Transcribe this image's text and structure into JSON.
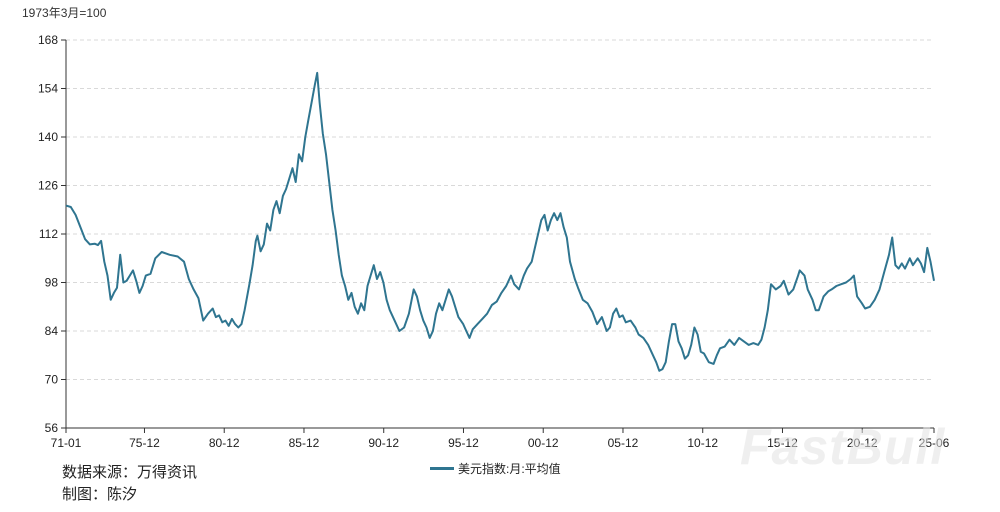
{
  "chart_data": {
    "type": "line",
    "unit_label": "1973年3月=100",
    "ylim": [
      56,
      168
    ],
    "yticks": [
      56,
      70,
      84,
      98,
      112,
      126,
      140,
      154,
      168
    ],
    "xlim": [
      1971.0,
      2025.42
    ],
    "xticks": [
      {
        "label": "71-01",
        "x": 1971.0
      },
      {
        "label": "75-12",
        "x": 1975.92
      },
      {
        "label": "80-12",
        "x": 1980.92
      },
      {
        "label": "85-12",
        "x": 1985.92
      },
      {
        "label": "90-12",
        "x": 1990.92
      },
      {
        "label": "95-12",
        "x": 1995.92
      },
      {
        "label": "00-12",
        "x": 2000.92
      },
      {
        "label": "05-12",
        "x": 2005.92
      },
      {
        "label": "10-12",
        "x": 2010.92
      },
      {
        "label": "15-12",
        "x": 2015.92
      },
      {
        "label": "20-12",
        "x": 2020.92
      },
      {
        "label": "25-06",
        "x": 2025.42
      }
    ],
    "grid": true,
    "legend_position": "bottom-center",
    "series": [
      {
        "name": "美元指数:月:平均值",
        "color": "#2f7590",
        "points": [
          [
            1971.0,
            120.2
          ],
          [
            1971.3,
            119.8
          ],
          [
            1971.6,
            117.5
          ],
          [
            1971.9,
            114.0
          ],
          [
            1972.2,
            110.5
          ],
          [
            1972.5,
            109.0
          ],
          [
            1972.8,
            109.2
          ],
          [
            1973.0,
            108.8
          ],
          [
            1973.2,
            110.0
          ],
          [
            1973.4,
            104.0
          ],
          [
            1973.6,
            100.0
          ],
          [
            1973.8,
            93.0
          ],
          [
            1974.0,
            95.0
          ],
          [
            1974.2,
            96.5
          ],
          [
            1974.4,
            106.0
          ],
          [
            1974.6,
            98.0
          ],
          [
            1974.8,
            98.5
          ],
          [
            1975.0,
            100.0
          ],
          [
            1975.2,
            101.5
          ],
          [
            1975.4,
            98.5
          ],
          [
            1975.6,
            95.0
          ],
          [
            1975.8,
            97.0
          ],
          [
            1976.0,
            100.0
          ],
          [
            1976.3,
            100.5
          ],
          [
            1976.6,
            105.0
          ],
          [
            1977.0,
            106.8
          ],
          [
            1977.5,
            106.0
          ],
          [
            1978.0,
            105.5
          ],
          [
            1978.4,
            104.0
          ],
          [
            1978.7,
            99.0
          ],
          [
            1979.0,
            96.0
          ],
          [
            1979.3,
            93.5
          ],
          [
            1979.6,
            87.0
          ],
          [
            1979.9,
            89.0
          ],
          [
            1980.2,
            90.5
          ],
          [
            1980.4,
            88.0
          ],
          [
            1980.6,
            88.5
          ],
          [
            1980.8,
            86.5
          ],
          [
            1981.0,
            87.0
          ],
          [
            1981.2,
            85.5
          ],
          [
            1981.4,
            87.5
          ],
          [
            1981.6,
            86.0
          ],
          [
            1981.8,
            85.0
          ],
          [
            1982.0,
            86.0
          ],
          [
            1982.2,
            90.0
          ],
          [
            1982.5,
            97.5
          ],
          [
            1982.7,
            103.0
          ],
          [
            1982.9,
            110.0
          ],
          [
            1983.0,
            111.5
          ],
          [
            1983.2,
            107.0
          ],
          [
            1983.4,
            109.0
          ],
          [
            1983.6,
            115.0
          ],
          [
            1983.8,
            113.0
          ],
          [
            1984.0,
            119.0
          ],
          [
            1984.2,
            121.5
          ],
          [
            1984.4,
            118.0
          ],
          [
            1984.6,
            123.0
          ],
          [
            1984.8,
            125.0
          ],
          [
            1985.0,
            128.0
          ],
          [
            1985.2,
            131.0
          ],
          [
            1985.4,
            127.0
          ],
          [
            1985.6,
            135.0
          ],
          [
            1985.8,
            133.0
          ],
          [
            1986.0,
            140.0
          ],
          [
            1986.2,
            145.0
          ],
          [
            1986.4,
            150.0
          ],
          [
            1986.6,
            155.0
          ],
          [
            1986.75,
            158.5
          ],
          [
            1986.9,
            150.0
          ],
          [
            1987.1,
            141.0
          ],
          [
            1987.3,
            135.0
          ],
          [
            1987.5,
            127.0
          ],
          [
            1987.7,
            119.0
          ],
          [
            1987.9,
            113.0
          ],
          [
            1988.1,
            106.0
          ],
          [
            1988.3,
            100.0
          ],
          [
            1988.5,
            97.0
          ],
          [
            1988.7,
            93.0
          ],
          [
            1988.9,
            95.0
          ],
          [
            1989.1,
            91.0
          ],
          [
            1989.3,
            89.0
          ],
          [
            1989.5,
            92.0
          ],
          [
            1989.7,
            90.0
          ],
          [
            1989.9,
            97.0
          ],
          [
            1990.1,
            100.0
          ],
          [
            1990.3,
            103.0
          ],
          [
            1990.5,
            99.0
          ],
          [
            1990.7,
            101.0
          ],
          [
            1990.9,
            98.0
          ],
          [
            1991.1,
            93.0
          ],
          [
            1991.3,
            90.0
          ],
          [
            1991.6,
            87.0
          ],
          [
            1991.9,
            84.0
          ],
          [
            1992.2,
            85.0
          ],
          [
            1992.5,
            89.0
          ],
          [
            1992.8,
            96.0
          ],
          [
            1993.0,
            94.0
          ],
          [
            1993.2,
            90.0
          ],
          [
            1993.4,
            87.0
          ],
          [
            1993.6,
            85.0
          ],
          [
            1993.8,
            82.0
          ],
          [
            1994.0,
            84.0
          ],
          [
            1994.2,
            89.0
          ],
          [
            1994.4,
            92.0
          ],
          [
            1994.6,
            90.0
          ],
          [
            1994.8,
            93.0
          ],
          [
            1995.0,
            96.0
          ],
          [
            1995.2,
            94.0
          ],
          [
            1995.4,
            91.0
          ],
          [
            1995.6,
            88.0
          ],
          [
            1995.9,
            86.0
          ],
          [
            1996.1,
            84.0
          ],
          [
            1996.3,
            82.0
          ],
          [
            1996.5,
            84.5
          ],
          [
            1996.8,
            86.0
          ],
          [
            1997.1,
            87.5
          ],
          [
            1997.4,
            89.0
          ],
          [
            1997.7,
            91.5
          ],
          [
            1998.0,
            92.5
          ],
          [
            1998.3,
            95.0
          ],
          [
            1998.6,
            97.0
          ],
          [
            1998.9,
            100.0
          ],
          [
            1999.1,
            97.5
          ],
          [
            1999.4,
            96.0
          ],
          [
            1999.7,
            100.0
          ],
          [
            1999.9,
            102.0
          ],
          [
            2000.2,
            104.0
          ],
          [
            2000.5,
            110.0
          ],
          [
            2000.8,
            116.0
          ],
          [
            2001.0,
            117.5
          ],
          [
            2001.2,
            113.0
          ],
          [
            2001.4,
            116.0
          ],
          [
            2001.6,
            118.0
          ],
          [
            2001.8,
            116.0
          ],
          [
            2002.0,
            118.0
          ],
          [
            2002.2,
            114.0
          ],
          [
            2002.4,
            111.0
          ],
          [
            2002.6,
            104.0
          ],
          [
            2002.9,
            99.0
          ],
          [
            2003.1,
            96.5
          ],
          [
            2003.4,
            93.0
          ],
          [
            2003.7,
            92.0
          ],
          [
            2004.0,
            89.5
          ],
          [
            2004.3,
            86.0
          ],
          [
            2004.6,
            88.0
          ],
          [
            2004.9,
            84.0
          ],
          [
            2005.1,
            85.0
          ],
          [
            2005.3,
            89.0
          ],
          [
            2005.5,
            90.5
          ],
          [
            2005.7,
            88.0
          ],
          [
            2005.9,
            88.5
          ],
          [
            2006.1,
            86.5
          ],
          [
            2006.4,
            87.0
          ],
          [
            2006.7,
            85.0
          ],
          [
            2006.9,
            83.0
          ],
          [
            2007.2,
            82.0
          ],
          [
            2007.5,
            80.0
          ],
          [
            2007.8,
            77.0
          ],
          [
            2008.0,
            75.0
          ],
          [
            2008.2,
            72.5
          ],
          [
            2008.4,
            73.0
          ],
          [
            2008.6,
            75.0
          ],
          [
            2008.8,
            81.0
          ],
          [
            2009.0,
            86.0
          ],
          [
            2009.2,
            86.0
          ],
          [
            2009.4,
            81.0
          ],
          [
            2009.6,
            79.0
          ],
          [
            2009.8,
            76.0
          ],
          [
            2010.0,
            77.0
          ],
          [
            2010.2,
            80.0
          ],
          [
            2010.4,
            85.0
          ],
          [
            2010.6,
            83.0
          ],
          [
            2010.8,
            78.0
          ],
          [
            2011.0,
            77.5
          ],
          [
            2011.3,
            75.0
          ],
          [
            2011.6,
            74.5
          ],
          [
            2011.8,
            77.0
          ],
          [
            2012.0,
            79.0
          ],
          [
            2012.3,
            79.5
          ],
          [
            2012.6,
            81.5
          ],
          [
            2012.9,
            80.0
          ],
          [
            2013.2,
            82.0
          ],
          [
            2013.5,
            81.0
          ],
          [
            2013.8,
            80.0
          ],
          [
            2014.1,
            80.5
          ],
          [
            2014.4,
            80.0
          ],
          [
            2014.6,
            81.5
          ],
          [
            2014.8,
            85.0
          ],
          [
            2015.0,
            90.0
          ],
          [
            2015.2,
            97.5
          ],
          [
            2015.5,
            96.0
          ],
          [
            2015.8,
            97.0
          ],
          [
            2016.0,
            98.5
          ],
          [
            2016.3,
            94.5
          ],
          [
            2016.6,
            96.0
          ],
          [
            2016.9,
            100.0
          ],
          [
            2017.0,
            101.5
          ],
          [
            2017.3,
            100.0
          ],
          [
            2017.5,
            96.0
          ],
          [
            2017.8,
            93.0
          ],
          [
            2018.0,
            90.0
          ],
          [
            2018.2,
            90.0
          ],
          [
            2018.5,
            94.0
          ],
          [
            2018.8,
            95.5
          ],
          [
            2019.0,
            96.0
          ],
          [
            2019.3,
            97.0
          ],
          [
            2019.6,
            97.5
          ],
          [
            2019.9,
            98.0
          ],
          [
            2020.2,
            99.0
          ],
          [
            2020.4,
            100.0
          ],
          [
            2020.6,
            94.0
          ],
          [
            2020.9,
            92.0
          ],
          [
            2021.1,
            90.5
          ],
          [
            2021.4,
            91.0
          ],
          [
            2021.7,
            93.0
          ],
          [
            2022.0,
            96.0
          ],
          [
            2022.3,
            101.0
          ],
          [
            2022.6,
            106.0
          ],
          [
            2022.8,
            111.0
          ],
          [
            2023.0,
            103.0
          ],
          [
            2023.2,
            102.0
          ],
          [
            2023.4,
            103.5
          ],
          [
            2023.6,
            102.0
          ],
          [
            2023.9,
            105.0
          ],
          [
            2024.1,
            103.0
          ],
          [
            2024.4,
            105.0
          ],
          [
            2024.6,
            103.5
          ],
          [
            2024.8,
            101.0
          ],
          [
            2025.0,
            108.0
          ],
          [
            2025.2,
            104.0
          ],
          [
            2025.42,
            98.5
          ]
        ]
      }
    ]
  },
  "source_label": "数据来源：万得资讯",
  "author_label": "制图：陈汐",
  "watermark": "FastBull"
}
